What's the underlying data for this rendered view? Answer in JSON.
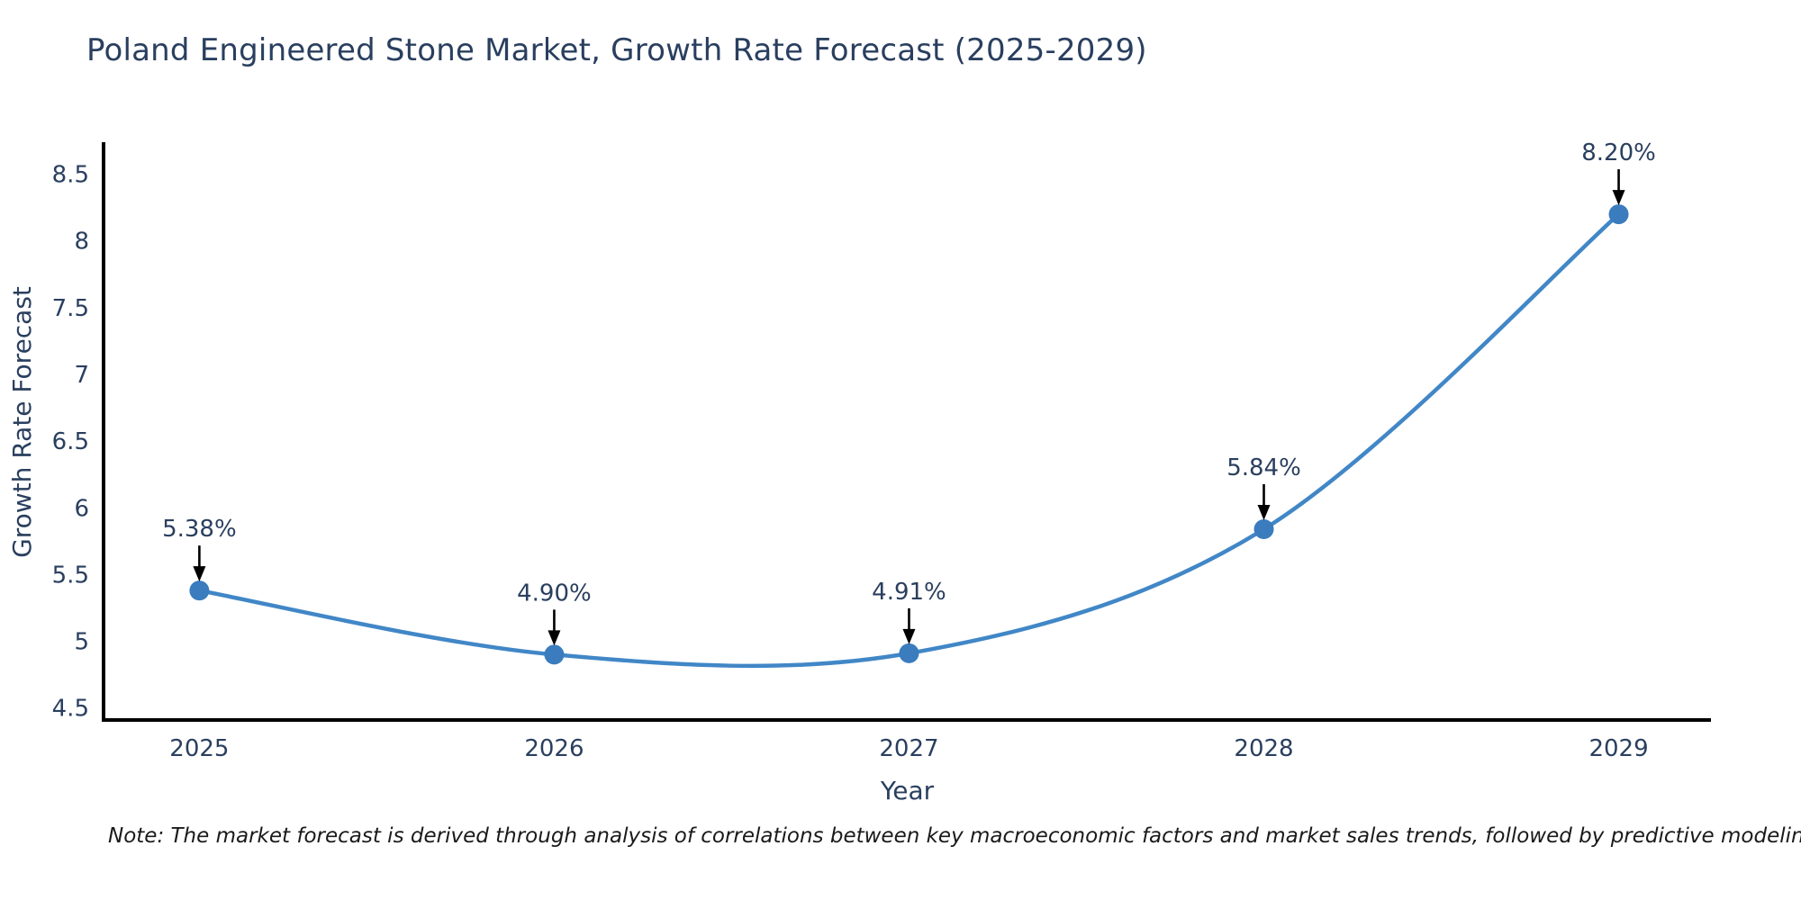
{
  "title": "Poland Engineered Stone Market, Growth Rate Forecast (2025-2029)",
  "note": "Note: The market forecast is derived through analysis of correlations between key macroeconomic factors and market sales trends, followed by predictive modeling to project future sales",
  "chart_data": {
    "type": "line",
    "title": "Poland Engineered Stone Market, Growth Rate Forecast (2025-2029)",
    "xlabel": "Year",
    "ylabel": "Growth Rate Forecast",
    "x": [
      2025,
      2026,
      2027,
      2028,
      2029
    ],
    "values": [
      5.38,
      4.9,
      4.91,
      5.84,
      8.2
    ],
    "point_labels": [
      "5.38%",
      "4.90%",
      "4.91%",
      "5.84%",
      "8.20%"
    ],
    "yticks": [
      4.5,
      5,
      5.5,
      6,
      6.5,
      7,
      7.5,
      8,
      8.5
    ],
    "xticks": [
      2025,
      2026,
      2027,
      2028,
      2029
    ],
    "xlim": [
      2024.73,
      2029.26
    ],
    "ylim": [
      4.41,
      8.74
    ],
    "grid": false,
    "legend": null,
    "line_shape": "spline",
    "annotation_style": "arrow-down",
    "colors": {
      "line": "#4187c7",
      "marker": "#3a7cbe",
      "axis": "#000000",
      "tick_text": "#2a3f5f",
      "annotation_text": "#2a3f5f",
      "annotation_arrow": "#000000",
      "background": "#ffffff"
    }
  }
}
